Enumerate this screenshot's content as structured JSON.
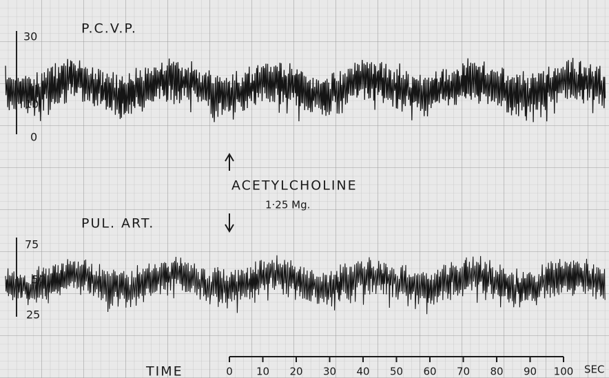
{
  "traces": [
    {
      "label": "P.C.V.P.",
      "ticks": [
        "30",
        "10",
        "0"
      ]
    },
    {
      "label": "PUL. ART.",
      "ticks": [
        "75",
        "50",
        "25"
      ]
    }
  ],
  "annotation": {
    "title": "ACETYLCHOLINE",
    "dose": "1·25 Mg."
  },
  "time_axis": {
    "label": "TIME",
    "ticks": [
      "0",
      "10",
      "20",
      "30",
      "40",
      "50",
      "60",
      "70",
      "80",
      "90",
      "100"
    ],
    "unit": "SEC"
  }
}
